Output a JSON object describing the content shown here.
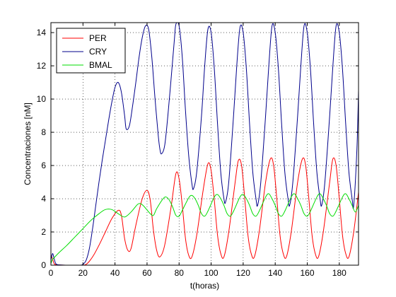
{
  "chart_data": {
    "type": "line",
    "title": "",
    "xlabel": "t(horas)",
    "ylabel": "Concentraciones [nM]",
    "xlim": [
      0,
      192
    ],
    "ylim": [
      0,
      14.6
    ],
    "xticks": [
      0,
      20,
      40,
      60,
      80,
      100,
      120,
      140,
      160,
      180
    ],
    "yticks": [
      0,
      2,
      4,
      6,
      8,
      10,
      12,
      14
    ],
    "grid": true,
    "legend_position": "top-left",
    "series": [
      {
        "name": "PER",
        "color": "#ff0000",
        "points": [
          [
            0,
            0.6
          ],
          [
            1,
            0.4
          ],
          [
            2,
            0.1
          ],
          [
            4,
            0.02
          ],
          [
            10,
            0
          ],
          [
            18,
            0
          ],
          [
            22,
            0.05
          ],
          [
            26,
            0.5
          ],
          [
            30,
            1.2
          ],
          [
            34,
            2.0
          ],
          [
            38,
            2.8
          ],
          [
            42,
            3.3
          ],
          [
            44,
            3.0
          ],
          [
            46,
            1.6
          ],
          [
            48,
            0.9
          ],
          [
            50,
            1.0
          ],
          [
            53,
            2.4
          ],
          [
            57,
            4.0
          ],
          [
            60,
            4.5
          ],
          [
            62,
            3.9
          ],
          [
            64,
            2.1
          ],
          [
            66,
            0.9
          ],
          [
            68,
            0.5
          ],
          [
            71,
            1.2
          ],
          [
            75,
            3.5
          ],
          [
            78,
            5.5
          ],
          [
            80,
            5.2
          ],
          [
            82,
            3.6
          ],
          [
            84,
            1.6
          ],
          [
            86,
            0.6
          ],
          [
            88,
            0.5
          ],
          [
            91,
            1.8
          ],
          [
            95,
            4.5
          ],
          [
            98,
            6.1
          ],
          [
            100,
            5.7
          ],
          [
            102,
            3.9
          ],
          [
            104,
            1.8
          ],
          [
            106,
            0.7
          ],
          [
            108,
            0.5
          ],
          [
            111,
            2.0
          ],
          [
            115,
            5.0
          ],
          [
            117,
            6.3
          ],
          [
            119,
            6.0
          ],
          [
            121,
            4.0
          ],
          [
            123,
            1.8
          ],
          [
            125,
            0.7
          ],
          [
            127,
            0.5
          ],
          [
            130,
            2.0
          ],
          [
            134,
            5.0
          ],
          [
            137,
            6.4
          ],
          [
            139,
            6.0
          ],
          [
            141,
            4.0
          ],
          [
            143,
            1.8
          ],
          [
            145,
            0.7
          ],
          [
            147,
            0.5
          ],
          [
            150,
            2.0
          ],
          [
            154,
            5.0
          ],
          [
            157,
            6.4
          ],
          [
            159,
            6.0
          ],
          [
            161,
            4.0
          ],
          [
            163,
            1.8
          ],
          [
            165,
            0.7
          ],
          [
            167,
            0.5
          ],
          [
            170,
            2.0
          ],
          [
            174,
            5.0
          ],
          [
            176,
            6.4
          ],
          [
            178,
            6.0
          ],
          [
            180,
            4.0
          ],
          [
            182,
            1.8
          ],
          [
            184,
            0.7
          ],
          [
            186,
            0.5
          ],
          [
            189,
            2.0
          ],
          [
            192,
            4.4
          ]
        ]
      },
      {
        "name": "CRY",
        "color": "#00008b",
        "points": [
          [
            0,
            0.3
          ],
          [
            1,
            0.7
          ],
          [
            2,
            0.4
          ],
          [
            3,
            0.1
          ],
          [
            5,
            0.02
          ],
          [
            10,
            0
          ],
          [
            18,
            0
          ],
          [
            20,
            0.05
          ],
          [
            22,
            0.3
          ],
          [
            24,
            1.0
          ],
          [
            26,
            2.2
          ],
          [
            28,
            3.6
          ],
          [
            30,
            5.0
          ],
          [
            32,
            6.3
          ],
          [
            34,
            7.5
          ],
          [
            36,
            8.7
          ],
          [
            38,
            9.8
          ],
          [
            40,
            10.7
          ],
          [
            42,
            11.0
          ],
          [
            44,
            10.4
          ],
          [
            46,
            9.0
          ],
          [
            47,
            8.2
          ],
          [
            49,
            8.4
          ],
          [
            51,
            9.6
          ],
          [
            53,
            11.0
          ],
          [
            55,
            12.5
          ],
          [
            57,
            13.7
          ],
          [
            59,
            14.4
          ],
          [
            61,
            14.2
          ],
          [
            63,
            12.5
          ],
          [
            65,
            10.0
          ],
          [
            67,
            7.8
          ],
          [
            68,
            7.0
          ],
          [
            69,
            6.7
          ],
          [
            71,
            7.2
          ],
          [
            73,
            9.0
          ],
          [
            75,
            11.2
          ],
          [
            77,
            13.5
          ],
          [
            78,
            14.5
          ],
          [
            80,
            14.4
          ],
          [
            82,
            12.5
          ],
          [
            84,
            9.3
          ],
          [
            86,
            6.6
          ],
          [
            88,
            4.9
          ],
          [
            89,
            4.6
          ],
          [
            91,
            5.6
          ],
          [
            94,
            9.0
          ],
          [
            96,
            12.0
          ],
          [
            98,
            14.2
          ],
          [
            100,
            14.0
          ],
          [
            102,
            11.8
          ],
          [
            104,
            8.5
          ],
          [
            106,
            5.6
          ],
          [
            108,
            4.0
          ],
          [
            109,
            3.8
          ],
          [
            111,
            5.0
          ],
          [
            114,
            9.0
          ],
          [
            116,
            12.0
          ],
          [
            118,
            14.3
          ],
          [
            120,
            14.0
          ],
          [
            122,
            11.8
          ],
          [
            124,
            8.5
          ],
          [
            126,
            5.6
          ],
          [
            128,
            4.0
          ],
          [
            129,
            3.6
          ],
          [
            131,
            5.0
          ],
          [
            134,
            9.0
          ],
          [
            136,
            12.0
          ],
          [
            138,
            14.4
          ],
          [
            140,
            14.0
          ],
          [
            142,
            11.8
          ],
          [
            144,
            8.5
          ],
          [
            146,
            5.6
          ],
          [
            148,
            4.0
          ],
          [
            149,
            3.6
          ],
          [
            151,
            5.0
          ],
          [
            154,
            9.0
          ],
          [
            156,
            12.0
          ],
          [
            158,
            14.4
          ],
          [
            160,
            14.0
          ],
          [
            162,
            11.8
          ],
          [
            164,
            8.5
          ],
          [
            166,
            5.6
          ],
          [
            168,
            4.0
          ],
          [
            169,
            3.6
          ],
          [
            171,
            5.0
          ],
          [
            174,
            9.0
          ],
          [
            176,
            12.0
          ],
          [
            178,
            14.4
          ],
          [
            180,
            14.0
          ],
          [
            182,
            11.8
          ],
          [
            184,
            8.5
          ],
          [
            186,
            5.6
          ],
          [
            188,
            4.0
          ],
          [
            189,
            3.6
          ],
          [
            191,
            7.0
          ],
          [
            192,
            10.5
          ]
        ]
      },
      {
        "name": "BMAL",
        "color": "#00dd00",
        "points": [
          [
            0,
            0.1
          ],
          [
            1,
            0.35
          ],
          [
            2,
            0.45
          ],
          [
            5,
            0.75
          ],
          [
            10,
            1.2
          ],
          [
            15,
            1.7
          ],
          [
            20,
            2.2
          ],
          [
            25,
            2.7
          ],
          [
            30,
            3.1
          ],
          [
            34,
            3.35
          ],
          [
            38,
            3.35
          ],
          [
            42,
            3.1
          ],
          [
            46,
            2.9
          ],
          [
            50,
            3.2
          ],
          [
            54,
            3.65
          ],
          [
            56,
            3.7
          ],
          [
            58,
            3.55
          ],
          [
            62,
            3.1
          ],
          [
            64,
            3.0
          ],
          [
            66,
            3.4
          ],
          [
            70,
            4.0
          ],
          [
            72,
            4.1
          ],
          [
            74,
            3.9
          ],
          [
            76,
            3.5
          ],
          [
            78,
            3.0
          ],
          [
            80,
            2.95
          ],
          [
            82,
            3.3
          ],
          [
            86,
            4.05
          ],
          [
            88,
            4.2
          ],
          [
            90,
            4.0
          ],
          [
            92,
            3.6
          ],
          [
            94,
            3.1
          ],
          [
            96,
            2.95
          ],
          [
            98,
            3.25
          ],
          [
            102,
            4.1
          ],
          [
            104,
            4.25
          ],
          [
            106,
            4.0
          ],
          [
            108,
            3.6
          ],
          [
            110,
            3.1
          ],
          [
            112,
            2.95
          ],
          [
            114,
            3.25
          ],
          [
            118,
            4.1
          ],
          [
            120,
            4.25
          ],
          [
            122,
            4.0
          ],
          [
            124,
            3.6
          ],
          [
            126,
            3.1
          ],
          [
            128,
            2.95
          ],
          [
            130,
            3.25
          ],
          [
            134,
            4.1
          ],
          [
            136,
            4.3
          ],
          [
            138,
            4.0
          ],
          [
            140,
            3.6
          ],
          [
            142,
            3.1
          ],
          [
            144,
            2.95
          ],
          [
            146,
            3.25
          ],
          [
            150,
            4.1
          ],
          [
            152,
            4.3
          ],
          [
            154,
            4.0
          ],
          [
            156,
            3.6
          ],
          [
            158,
            3.1
          ],
          [
            160,
            2.95
          ],
          [
            162,
            3.25
          ],
          [
            166,
            4.1
          ],
          [
            168,
            4.3
          ],
          [
            170,
            4.0
          ],
          [
            172,
            3.6
          ],
          [
            174,
            3.1
          ],
          [
            176,
            2.95
          ],
          [
            178,
            3.25
          ],
          [
            182,
            4.1
          ],
          [
            184,
            4.3
          ],
          [
            186,
            4.0
          ],
          [
            188,
            3.6
          ],
          [
            190,
            3.2
          ],
          [
            192,
            3.6
          ]
        ]
      }
    ]
  }
}
